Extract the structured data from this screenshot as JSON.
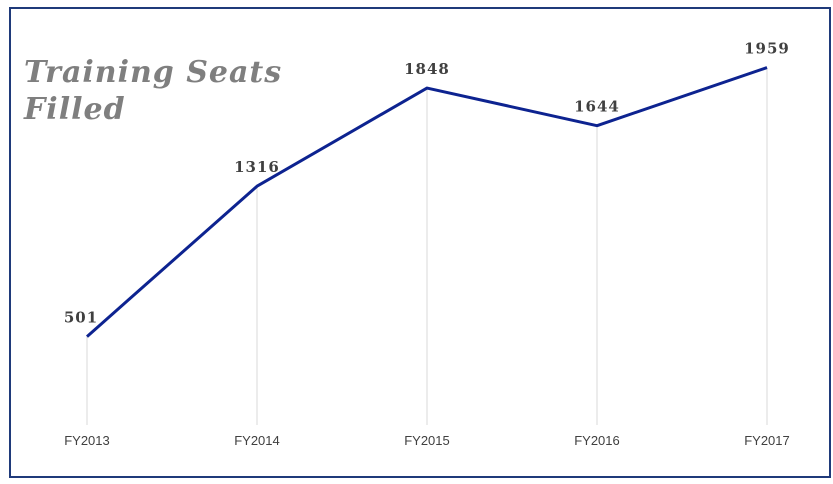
{
  "chart_data": {
    "type": "line",
    "title": "Training Seats Filled",
    "categories": [
      "FY2013",
      "FY2014",
      "FY2015",
      "FY2016",
      "FY2017"
    ],
    "series": [
      {
        "name": "Training Seats Filled",
        "color": "#0d2390",
        "values": [
          501,
          1316,
          1848,
          1644,
          1959
        ]
      }
    ],
    "ylim": [
      0,
      2000
    ],
    "drop_lines": true,
    "data_labels": true
  }
}
